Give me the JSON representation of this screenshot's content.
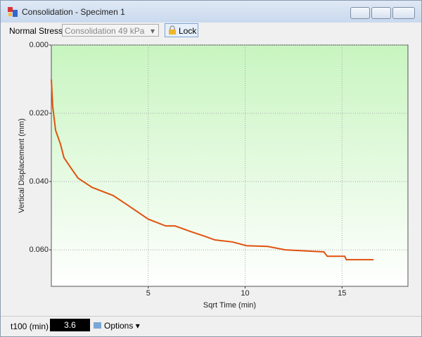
{
  "window": {
    "title": "Consolidation - Specimen 1"
  },
  "toolbar": {
    "stress_label": "Normal Stress",
    "stress_select": "Consolidation 49 kPa",
    "lock_button": "Lock"
  },
  "chart_data": {
    "type": "line",
    "xlabel": "Sqrt Time (min)",
    "ylabel": "Vertical Displacement (mm)",
    "x": [
      0.0,
      0.07,
      0.22,
      0.47,
      0.65,
      1.01,
      1.38,
      2.1,
      3.19,
      3.91,
      5.0,
      5.9,
      6.38,
      7.17,
      7.9,
      8.44,
      9.35,
      10.07,
      11.16,
      12.07,
      14.06,
      14.24,
      15.14,
      15.22,
      16.63
    ],
    "values": [
      0.0101,
      0.018,
      0.025,
      0.029,
      0.033,
      0.036,
      0.039,
      0.0417,
      0.0441,
      0.0468,
      0.051,
      0.053,
      0.053,
      0.0546,
      0.056,
      0.0571,
      0.0577,
      0.0588,
      0.059,
      0.06,
      0.0606,
      0.0619,
      0.0619,
      0.0629,
      0.0629
    ],
    "color": "#e0520f",
    "xlim": [
      0,
      18.4
    ],
    "xticks": [
      5,
      10,
      15
    ],
    "ylim": [
      0,
      0.0707
    ],
    "y_inverted": true,
    "yticks": [
      {
        "value": 0,
        "label": "0.000"
      },
      {
        "value": 0.02,
        "label": "0.020"
      },
      {
        "value": 0.04,
        "label": "0.040"
      },
      {
        "value": 0.06,
        "label": "0.060"
      }
    ],
    "grid": true
  },
  "statusbar": {
    "t100_label": "t100 (min)",
    "t100_value": "3.6",
    "options_button": "Options"
  }
}
